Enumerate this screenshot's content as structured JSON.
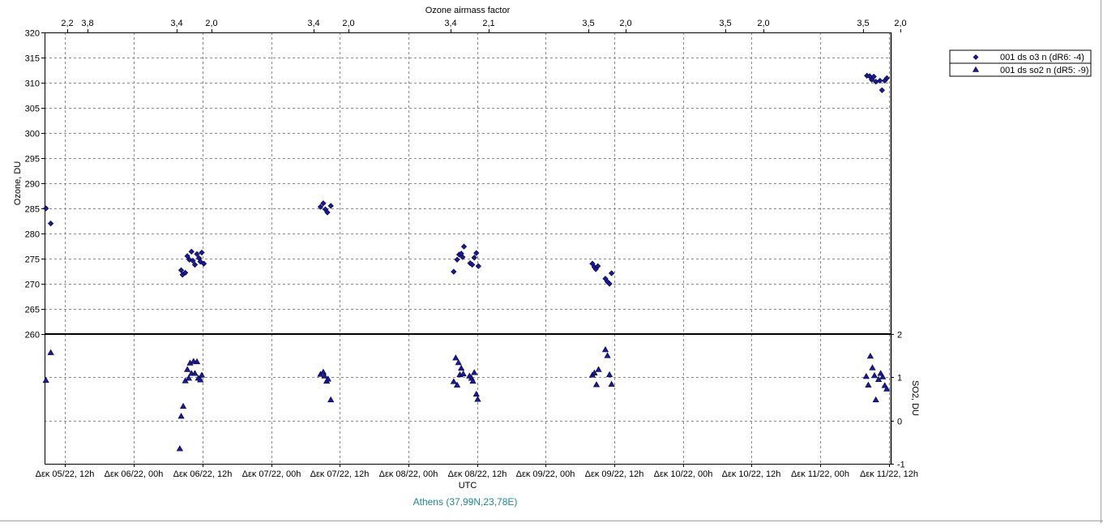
{
  "chart_data": {
    "type": "scatter",
    "location": "Athens (37,99N,23,78E)",
    "top_axis": {
      "label": "Ozone airmass factor",
      "ticks": [
        {
          "t": 0.03,
          "label": "2,2"
        },
        {
          "t": 0.32,
          "label": "3,8"
        },
        {
          "t": 1.62,
          "label": "3,4"
        },
        {
          "t": 2.13,
          "label": "2,0"
        },
        {
          "t": 3.62,
          "label": "3,4"
        },
        {
          "t": 4.13,
          "label": "2,0"
        },
        {
          "t": 5.62,
          "label": "3,4"
        },
        {
          "t": 6.17,
          "label": "2,1"
        },
        {
          "t": 7.62,
          "label": "3,5"
        },
        {
          "t": 8.17,
          "label": "2,0"
        },
        {
          "t": 9.62,
          "label": "3,5"
        },
        {
          "t": 10.17,
          "label": "2,0"
        },
        {
          "t": 11.62,
          "label": "3,5"
        },
        {
          "t": 12.17,
          "label": "2,0"
        }
      ]
    },
    "x_axis": {
      "label": "UTC",
      "tick_labels": [
        "Δεκ 05/22, 12h",
        "Δεκ 06/22, 00h",
        "Δεκ 06/22, 12h",
        "Δεκ 07/22, 00h",
        "Δεκ 07/22, 12h",
        "Δεκ 08/22, 00h",
        "Δεκ 08/22, 12h",
        "Δεκ 09/22, 00h",
        "Δεκ 09/22, 12h",
        "Δεκ 10/22, 00h",
        "Δεκ 10/22, 12h",
        "Δεκ 11/22, 00h",
        "Δεκ 11/22, 12h"
      ],
      "unit_hours_per_tick": 12,
      "range_ticks": [
        -0.3,
        12.5
      ]
    },
    "panels": [
      {
        "name": "ozone",
        "ylabel": "Ozone, DU",
        "ylim": [
          260,
          320
        ],
        "yticks": [
          260,
          265,
          270,
          275,
          280,
          285,
          290,
          295,
          300,
          305,
          310,
          315,
          320
        ],
        "grid": true,
        "series": "001 ds o3  n (dR6: -4)"
      },
      {
        "name": "so2",
        "ylabel": "SO2, DU",
        "ylim": [
          -1,
          2
        ],
        "yticks": [
          -1,
          0,
          1,
          2
        ],
        "grid": true,
        "y_axis_side": "right",
        "series": "001 ds so2 n (dR5: -9)"
      }
    ],
    "legend": {
      "placement": "top-right"
    },
    "series": [
      {
        "name": "001 ds o3  n (dR6: -4)",
        "marker": "diamond",
        "color": "#1a1a9a",
        "points": [
          [
            -0.28,
            285.0
          ],
          [
            -0.21,
            282.0
          ],
          [
            1.69,
            272.7
          ],
          [
            1.71,
            271.8
          ],
          [
            1.75,
            272.2
          ],
          [
            1.78,
            275.5
          ],
          [
            1.81,
            274.8
          ],
          [
            1.84,
            276.4
          ],
          [
            1.86,
            274.6
          ],
          [
            1.89,
            273.8
          ],
          [
            1.92,
            275.9
          ],
          [
            1.95,
            275.1
          ],
          [
            1.97,
            274.4
          ],
          [
            1.99,
            276.2
          ],
          [
            2.02,
            274.0
          ],
          [
            3.72,
            285.3
          ],
          [
            3.76,
            286.0
          ],
          [
            3.79,
            284.8
          ],
          [
            3.82,
            284.2
          ],
          [
            3.87,
            285.5
          ],
          [
            5.66,
            272.4
          ],
          [
            5.71,
            274.8
          ],
          [
            5.74,
            275.8
          ],
          [
            5.77,
            276.0
          ],
          [
            5.79,
            275.3
          ],
          [
            5.81,
            277.4
          ],
          [
            5.9,
            274.1
          ],
          [
            5.93,
            273.8
          ],
          [
            5.96,
            275.2
          ],
          [
            5.99,
            276.1
          ],
          [
            6.02,
            273.5
          ],
          [
            7.68,
            274.0
          ],
          [
            7.71,
            273.3
          ],
          [
            7.73,
            272.9
          ],
          [
            7.76,
            273.5
          ],
          [
            7.87,
            271.0
          ],
          [
            7.9,
            270.4
          ],
          [
            7.93,
            270.0
          ],
          [
            7.96,
            272.1
          ],
          [
            11.68,
            311.4
          ],
          [
            11.72,
            311.3
          ],
          [
            11.75,
            310.6
          ],
          [
            11.78,
            311.2
          ],
          [
            11.81,
            310.2
          ],
          [
            11.87,
            310.4
          ],
          [
            11.9,
            308.5
          ],
          [
            11.94,
            310.4
          ],
          [
            11.97,
            310.9
          ]
        ]
      },
      {
        "name": "001 ds so2 n (dR5: -9)",
        "marker": "triangle",
        "color": "#1a1a9a",
        "points": [
          [
            -0.28,
            0.93
          ],
          [
            -0.21,
            1.57
          ],
          [
            1.67,
            -0.65
          ],
          [
            1.69,
            0.1
          ],
          [
            1.72,
            0.33
          ],
          [
            1.75,
            0.92
          ],
          [
            1.78,
            1.18
          ],
          [
            1.8,
            0.98
          ],
          [
            1.82,
            1.33
          ],
          [
            1.84,
            1.09
          ],
          [
            1.87,
            1.37
          ],
          [
            1.89,
            1.09
          ],
          [
            1.92,
            1.36
          ],
          [
            1.94,
            0.98
          ],
          [
            1.97,
            0.94
          ],
          [
            1.99,
            1.05
          ],
          [
            3.72,
            1.07
          ],
          [
            3.76,
            1.12
          ],
          [
            3.78,
            1.03
          ],
          [
            3.81,
            0.91
          ],
          [
            3.83,
            0.96
          ],
          [
            3.87,
            0.48
          ],
          [
            5.66,
            0.9
          ],
          [
            5.69,
            1.45
          ],
          [
            5.71,
            0.82
          ],
          [
            5.73,
            1.34
          ],
          [
            5.75,
            1.06
          ],
          [
            5.77,
            1.21
          ],
          [
            5.8,
            1.08
          ],
          [
            5.89,
            1.03
          ],
          [
            5.92,
            0.98
          ],
          [
            5.94,
            0.91
          ],
          [
            5.96,
            1.11
          ],
          [
            5.99,
            0.61
          ],
          [
            6.01,
            0.49
          ],
          [
            7.68,
            1.05
          ],
          [
            7.71,
            1.1
          ],
          [
            7.74,
            0.83
          ],
          [
            7.77,
            1.18
          ],
          [
            7.87,
            1.64
          ],
          [
            7.9,
            1.5
          ],
          [
            7.93,
            1.06
          ],
          [
            7.96,
            0.84
          ],
          [
            11.67,
            1.02
          ],
          [
            11.7,
            0.82
          ],
          [
            11.73,
            1.49
          ],
          [
            11.76,
            1.22
          ],
          [
            11.79,
            1.04
          ],
          [
            11.81,
            0.48
          ],
          [
            11.85,
            0.95
          ],
          [
            11.88,
            1.09
          ],
          [
            11.91,
            1.01
          ],
          [
            11.94,
            0.81
          ],
          [
            11.97,
            0.73
          ]
        ]
      }
    ]
  }
}
